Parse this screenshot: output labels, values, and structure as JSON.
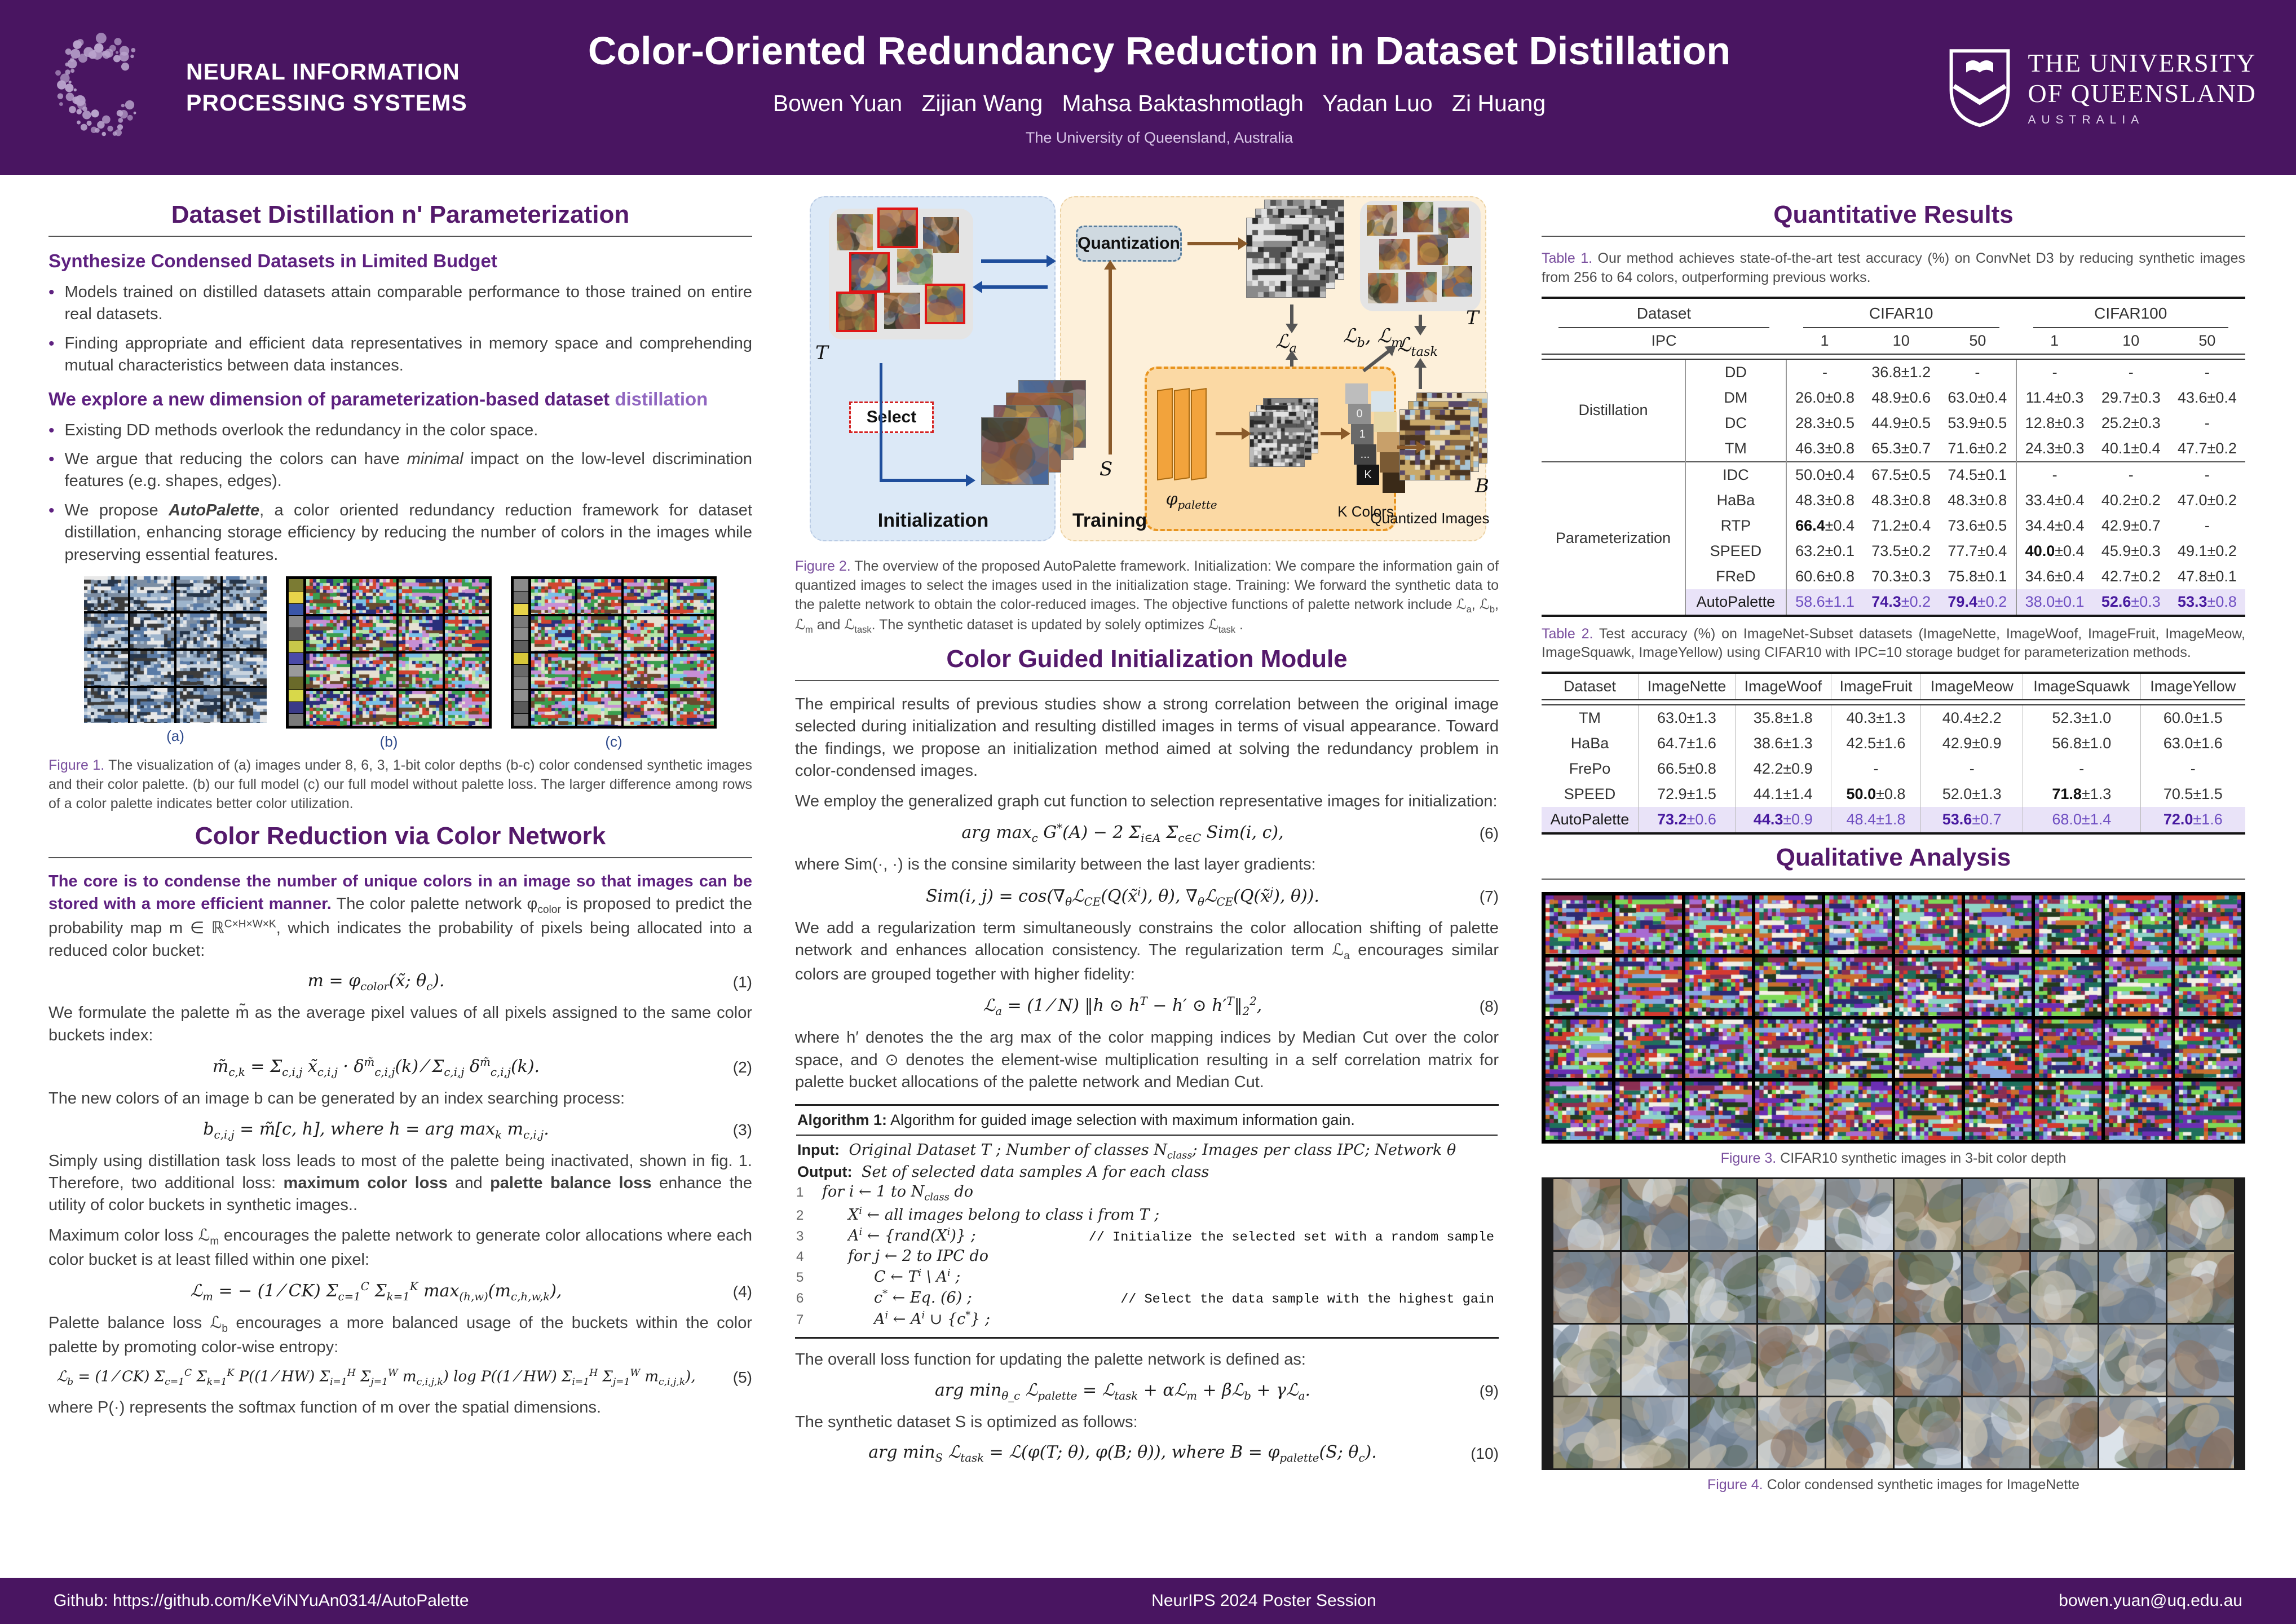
{
  "colors": {
    "header_purple": "#491561",
    "section_purple": "#54196b",
    "subhead_purple": "#5e2180",
    "accent_violet": "#9066c0",
    "caption_label": "#7a4f9e",
    "body_text": "#3f3f3f",
    "highlight_bg": "#e9e3f8",
    "highlight_text": "#6f4ec2",
    "highlight_bold": "#47199f",
    "fig_label_blue": "#2e4a8c",
    "diagram_init_bg": "#dce9f7",
    "diagram_train_bg": "#fdf0da",
    "palette_box_bg": "#fbd9a4",
    "palette_box_border": "#e8941f",
    "arrow_brown": "#8a5a2a",
    "arrow_blue": "#1f4e9c"
  },
  "header": {
    "logo_line1": "NEURAL INFORMATION",
    "logo_line2": "PROCESSING SYSTEMS",
    "title": "Color-Oriented Redundancy Reduction in Dataset Distillation",
    "authors": "Bowen Yuan   Zijian Wang   Mahsa Baktashmotlagh   Yadan Luo   Zi Huang",
    "affiliation": "The University of Queensland, Australia",
    "uq_line1": "THE UNIVERSITY",
    "uq_line2": "OF QUEENSLAND",
    "uq_line3": "AUSTRALIA"
  },
  "left": {
    "sec1_title": "Dataset Distillation n' Parameterization",
    "sub1": "Synthesize Condensed Datasets in Limited Budget",
    "b1": "Models trained on distilled datasets attain comparable performance to those trained on entire real datasets.",
    "b2": "Finding appropriate and efficient data representatives in memory space and comprehending mutual characteristics between data instances.",
    "sub2_part1": "We explore a new dimension of parameterization-based dataset ",
    "sub2_part2": "distillation",
    "b3": "Existing DD methods overlook the redundancy in the color space.",
    "b4a": "We argue that reducing the colors can have ",
    "b4b": "minimal",
    "b4c": " impact on the low-level discrimination features (e.g.  shapes, edges).",
    "b5a": "We propose ",
    "b5b": "AutoPalette",
    "b5c": ", a color oriented redundancy reduction framework for dataset distillation, enhancing storage efficiency by reducing the number of colors in the images while preserving essential features.",
    "fig1_lab_a": "(a)",
    "fig1_lab_b": "(b)",
    "fig1_lab_c": "(c)",
    "fig1_label": "Figure 1.",
    "fig1_caption": " The visualization of (a) images under 8, 6, 3, 1-bit color depths (b-c) color condensed synthetic images and their color palette. (b) our full model (c) our full model without palette loss. The larger difference among rows of a color palette indicates better color utilization.",
    "sec2_title": "Color Reduction via Color Network",
    "p1_lead": "The core is to condense the number of unique colors in an image so that images can be stored with a more efficient manner.",
    "p1_rest": " The color palette network φ_{color} is proposed to predict the probability map m ∈ ℝ^{C×H×W×K}, which indicates the probability of pixels being allocated into a reduced color bucket:",
    "eq1": "m = φ_{color}(x̃; θ_{c}).",
    "eq1_num": "(1)",
    "p2": "We formulate the palette m̃ as the average pixel values of all pixels assigned to the same color buckets index:",
    "eq2": "m̃_{c,k} = Σ_{c,i,j} x̃_{c,i,j} · δ^{m̃}_{c,i,j}(k) ⁄ Σ_{c,i,j} δ^{m̃}_{c,i,j}(k).",
    "eq2_num": "(2)",
    "p3": "The new colors of an image b can be generated by an index searching process:",
    "eq3": "b_{c,i,j} = m̃[c, h],  where h = arg max_{k} m_{c,i,j}.",
    "eq3_num": "(3)",
    "p4a": "Simply using distillation task loss leads to most of the palette being inactivated, shown in fig. 1. Therefore, two additional loss: ",
    "p4b": "maximum color loss",
    "p4c": " and ",
    "p4d": "palette balance loss",
    "p4e": " enhance the utility of color buckets in synthetic images..",
    "p5": "Maximum color loss ℒ_{m} encourages the palette network to generate color allocations where each color bucket is at least filled within one pixel:",
    "eq4": "ℒ_{m} = − (1 ⁄ CK) Σ_{c=1}^{C} Σ_{k=1}^{K} max_{(h,w)}(m_{c,h,w,k}),",
    "eq4_num": "(4)",
    "p6": "Palette balance loss ℒ_{b} encourages a more balanced usage of the buckets within the color palette by promoting color-wise entropy:",
    "eq5": "ℒ_{b} = (1 ⁄ CK) Σ_{c=1}^{C} Σ_{k=1}^{K} P((1 ⁄ HW) Σ_{i=1}^{H} Σ_{j=1}^{W} m_{c,i,j,k}) log P((1 ⁄ HW) Σ_{i=1}^{H} Σ_{j=1}^{W} m_{c,i,j,k}),",
    "eq5_num": "(5)",
    "p7": "where P(·) represents the softmax function of m over the spatial dimensions."
  },
  "middle": {
    "fig2": {
      "t": "T",
      "s": "S",
      "b": "B",
      "quantization": "Quantization",
      "select": "Select",
      "phi": "φ_{palette}",
      "la": "ℒ_{a}",
      "lblm": "ℒ_{b}, ℒ_{m}",
      "ltask": "ℒ_{task}",
      "kcolors": "K Colors",
      "quantized": "Quantized Images",
      "init": "Initialization",
      "training": "Training",
      "kstrip_labels": [
        "",
        "0",
        "1",
        "...",
        "K"
      ]
    },
    "fig2_label": "Figure 2.",
    "fig2_caption": " The overview of the proposed AutoPalette framework. Initialization: We compare the information gain of quantized images to select the images used in the initialization stage. Training: We forward the synthetic data to the palette network to obtain the color-reduced images. The objective functions of palette network include ℒ_{a}, ℒ_{b}, ℒ_{m} and ℒ_{task}. The synthetic dataset is updated by solely optimizes ℒ_{task} .",
    "sec3_title": "Color Guided Initialization Module",
    "mp1": "The empirical results of previous studies show a strong correlation between the original image selected during initialization and resulting distilled images in terms of visual appearance. Toward the findings, we propose an initialization method aimed at solving the redundancy problem in color-condensed images.",
    "mp2": "We employ the generalized graph cut function to selection representative images for initialization:",
    "eq6": "arg max_{c} G^{*}(A) − 2 Σ_{i∈A} Σ_{c∈C} Sim(i, c),",
    "eq6_num": "(6)",
    "mp3": "where Sim(·, ·) is the consine similarity between the last layer gradients:",
    "eq7": "Sim(i, j) = cos(∇_{θ}ℒ_{CE}(Q(x̃^{i}), θ), ∇_{θ}ℒ_{CE}(Q(x̃^{j}), θ)).",
    "eq7_num": "(7)",
    "mp4": "We add a regularization term simultaneously constrains the color allocation shifting of palette network and enhances allocation consistency. The regularization term ℒ_{a} encourages similar colors are grouped together with higher fidelity:",
    "eq8": "ℒ_{a} = (1 ⁄ N) ‖h ⊙ h^{T} − h′ ⊙ h′^{T}‖_{2}^{2},",
    "eq8_num": "(8)",
    "mp5": "where h′ denotes the the arg max of the color mapping indices by Median Cut over the color space, and ⊙ denotes the element-wise multiplication resulting in a self correlation matrix for palette bucket allocations of the palette network and Median Cut.",
    "algo": {
      "title_label": "Algorithm 1:",
      "title_rest": " Algorithm for guided image selection with maximum information gain.",
      "input_label": "Input:",
      "input_text": " Original Dataset T ; Number of classes N_{class}; Images per class IPC; Network θ",
      "output_label": "Output:",
      "output_text": " Set of selected data samples A for each class",
      "lines": [
        {
          "n": "1",
          "ind": 0,
          "t": "for i ← 1 to N_{class} do",
          "c": ""
        },
        {
          "n": "2",
          "ind": 1,
          "t": "X^{i} ← all images belong to class i from T ;",
          "c": ""
        },
        {
          "n": "3",
          "ind": 1,
          "t": "A^{i} ← {rand(X^{i})} ;",
          "c": "// Initialize the selected set with a random sample"
        },
        {
          "n": "4",
          "ind": 1,
          "t": "for j ← 2 to IPC do",
          "c": ""
        },
        {
          "n": "5",
          "ind": 2,
          "t": "C ← T^{i} \\ A^{i} ;",
          "c": ""
        },
        {
          "n": "6",
          "ind": 2,
          "t": "c^{*} ← Eq. (6) ;",
          "c": "// Select the data sample with the highest gain"
        },
        {
          "n": "7",
          "ind": 2,
          "t": "A^{i} ← A^{i} ∪ {c^{*}} ;",
          "c": ""
        }
      ]
    },
    "mp6": "The overall loss function for updating the palette network is defined as:",
    "eq9": "arg min_{θ_c} ℒ_{palette} = ℒ_{task} + αℒ_{m} + βℒ_{b} + γℒ_{a}.",
    "eq9_num": "(9)",
    "mp7": "The synthetic dataset S is optimized as follows:",
    "eq10": "arg min_{S} ℒ_{task} = ℒ(φ(T; θ), φ(B; θ)), where B = φ_{palette}(S; θ_{c}).",
    "eq10_num": "(10)"
  },
  "right": {
    "sec4_title": "Quantitative Results",
    "t1_label": "Table 1.",
    "t1_caption": " Our method achieves state-of-the-art test accuracy (%) on ConvNet D3 by reducing synthetic images from 256 to 64 colors, outperforming previous works.",
    "table1": {
      "col_dataset": "Dataset",
      "col_cifar10": "CIFAR10",
      "col_cifar100": "CIFAR100",
      "ipc_label": "IPC",
      "ipc_cols": [
        "1",
        "10",
        "50",
        "1",
        "10",
        "50"
      ],
      "groups": [
        {
          "name": "Distillation",
          "rows": [
            {
              "method": "DD",
              "values": [
                "-",
                "36.8±1.2",
                "-",
                "-",
                "-",
                "-"
              ]
            },
            {
              "method": "DM",
              "values": [
                "26.0±0.8",
                "48.9±0.6",
                "63.0±0.4",
                "11.4±0.3",
                "29.7±0.3",
                "43.6±0.4"
              ]
            },
            {
              "method": "DC",
              "values": [
                "28.3±0.5",
                "44.9±0.5",
                "53.9±0.5",
                "12.8±0.3",
                "25.2±0.3",
                "-"
              ]
            },
            {
              "method": "TM",
              "values": [
                "46.3±0.8",
                "65.3±0.7",
                "71.6±0.2",
                "24.3±0.3",
                "40.1±0.4",
                "47.7±0.2"
              ]
            }
          ]
        },
        {
          "name": "Parameterization",
          "rows": [
            {
              "method": "IDC",
              "values": [
                "50.0±0.4",
                "67.5±0.5",
                "74.5±0.1",
                "-",
                "-",
                "-"
              ]
            },
            {
              "method": "HaBa",
              "values": [
                "48.3±0.8",
                "48.3±0.8",
                "48.3±0.8",
                "33.4±0.4",
                "40.2±0.2",
                "47.0±0.2"
              ]
            },
            {
              "method": "RTP",
              "values": [
                "66.4±0.4",
                "71.2±0.4",
                "73.6±0.5",
                "34.4±0.4",
                "42.9±0.7",
                "-"
              ],
              "bold": [
                0
              ]
            },
            {
              "method": "SPEED",
              "values": [
                "63.2±0.1",
                "73.5±0.2",
                "77.7±0.4",
                "40.0±0.4",
                "45.9±0.3",
                "49.1±0.2"
              ],
              "bold": [
                3
              ]
            },
            {
              "method": "FReD",
              "values": [
                "60.6±0.8",
                "70.3±0.3",
                "75.8±0.1",
                "34.6±0.4",
                "42.7±0.2",
                "47.8±0.1"
              ]
            },
            {
              "method": "AutoPalette",
              "highlight": true,
              "values": [
                "58.6±1.1",
                "74.3±0.2",
                "79.4±0.2",
                "38.0±0.1",
                "52.6±0.3",
                "53.3±0.8"
              ],
              "bold": [
                1,
                2,
                4,
                5
              ]
            }
          ]
        }
      ]
    },
    "t2_label": "Table 2.",
    "t2_caption": " Test accuracy (%) on ImageNet-Subset datasets (ImageNette, ImageWoof, ImageFruit, ImageMeow, ImageSquawk, ImageYellow) using CIFAR10 with IPC=10 storage budget for parameterization methods.",
    "table2": {
      "headers": [
        "Dataset",
        "ImageNette",
        "ImageWoof",
        "ImageFruit",
        "ImageMeow",
        "ImageSquawk",
        "ImageYellow"
      ],
      "rows": [
        {
          "method": "TM",
          "values": [
            "63.0±1.3",
            "35.8±1.8",
            "40.3±1.3",
            "40.4±2.2",
            "52.3±1.0",
            "60.0±1.5"
          ]
        },
        {
          "method": "HaBa",
          "values": [
            "64.7±1.6",
            "38.6±1.3",
            "42.5±1.6",
            "42.9±0.9",
            "56.8±1.0",
            "63.0±1.6"
          ]
        },
        {
          "method": "FrePo",
          "values": [
            "66.5±0.8",
            "42.2±0.9",
            "-",
            "-",
            "-",
            "-"
          ]
        },
        {
          "method": "SPEED",
          "values": [
            "72.9±1.5",
            "44.1±1.4",
            "50.0±0.8",
            "52.0±1.3",
            "71.8±1.3",
            "70.5±1.5"
          ],
          "bold": [
            2,
            4
          ]
        },
        {
          "method": "AutoPalette",
          "highlight": true,
          "values": [
            "73.2±0.6",
            "44.3±0.9",
            "48.4±1.8",
            "53.6±0.7",
            "68.0±1.4",
            "72.0±1.6"
          ],
          "bold": [
            0,
            1,
            3,
            5
          ]
        }
      ]
    },
    "sec5_title": "Qualitative Analysis",
    "fig3_label": "Figure 3.",
    "fig3_caption": " CIFAR10 synthetic images in 3-bit color depth",
    "fig4_label": "Figure 4.",
    "fig4_caption": " Color condensed synthetic images for ImageNette"
  },
  "footer": {
    "github": "Github: https://github.com/KeViNYuAn0314/AutoPalette",
    "center": "NeurIPS 2024 Poster Session",
    "email": "bowen.yuan@uq.edu.au"
  },
  "figures": {
    "fig1_palette_a": [
      "#27364a",
      "#5a7ba6",
      "#9db4cc",
      "#c9d4df",
      "#3c3c3c",
      "#e8e8e8",
      "#7d8ea3"
    ],
    "fig1_palette_bc": [
      "#3a9d4e",
      "#b7e3a8",
      "#d2452f",
      "#2a2f7a",
      "#7ac0e8",
      "#e5e0d2",
      "#6a4a2f",
      "#c78fd4"
    ],
    "fig1_strip_b": [
      "#7b7b33",
      "#e8d44a",
      "#3a56a8",
      "#8a8a8a",
      "#5a5a5a",
      "#c8c84a",
      "#4a4aa8",
      "#9a9a9a",
      "#6a6a2a",
      "#d8d84a",
      "#3a3a88",
      "#7a7a7a"
    ],
    "fig1_strip_c": [
      "#8a8a8a",
      "#6f6f6f",
      "#e8d44a",
      "#7a7a7a",
      "#8a8a8a",
      "#5f5f5f",
      "#d8c83a",
      "#6a6a6a",
      "#7f7f7f",
      "#8f8f8f",
      "#5a5a5a",
      "#757575"
    ],
    "fig3_palette": [
      "#7ed957",
      "#2e2a72",
      "#a86bd1",
      "#8fd3c7",
      "#f2efe4",
      "#8a2f52",
      "#c96f2f",
      "#88a9e0",
      "#253a1e",
      "#6b2fb3",
      "#d43a2f",
      "#1f6f5c"
    ],
    "fig4_palette": [
      "#9aa7b8",
      "#b8a98f",
      "#6b7a8c",
      "#c9c2b2",
      "#4a5a3a",
      "#8c6f5a",
      "#dce3ea",
      "#7a8a9a"
    ],
    "thumb_palette": [
      "#7a9e5a",
      "#b06a3a",
      "#8a5a3a",
      "#4a6a9a",
      "#d0c8b8",
      "#3a3a2a",
      "#c89a4a",
      "#7a4a5a"
    ],
    "gray_palette": [
      "#2b2b2b",
      "#555555",
      "#8a8a8a",
      "#bbbbbb",
      "#e2e2e2"
    ],
    "tan_palette": [
      "#4a3420",
      "#8a6a42",
      "#c9a96a",
      "#e8dcc0",
      "#a8c4d4",
      "#5a4a6a"
    ],
    "kstrip_dark": [
      "#bdbdbd",
      "#8f8f8f",
      "#6a6a6a",
      "#444444",
      "#161616"
    ],
    "kstrip_color": [
      "#d8e4ec",
      "#e8d8a8",
      "#c8a06a",
      "#7a5a34",
      "#3a2a18"
    ]
  }
}
